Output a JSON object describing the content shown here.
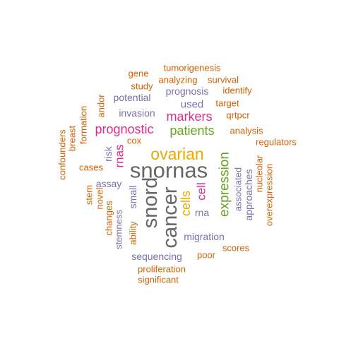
{
  "colors": {
    "orange": "#d95f02",
    "purple": "#7570b3",
    "magenta": "#e7298a",
    "green": "#66a61e",
    "gold": "#e6ab02",
    "gray": "#666666"
  },
  "words": [
    {
      "text": "snornas",
      "color": "#666666"
    },
    {
      "text": "cancer",
      "color": "#666666"
    },
    {
      "text": "snord",
      "color": "#666666"
    },
    {
      "text": "ovarian",
      "color": "#e6ab02"
    },
    {
      "text": "expression",
      "color": "#66a61e"
    },
    {
      "text": "patients",
      "color": "#66a61e"
    },
    {
      "text": "prognostic",
      "color": "#e7298a"
    },
    {
      "text": "markers",
      "color": "#e7298a"
    },
    {
      "text": "cells",
      "color": "#e6ab02"
    },
    {
      "text": "cell",
      "color": "#e7298a"
    },
    {
      "text": "rnas",
      "color": "#e7298a"
    },
    {
      "text": "prognosis",
      "color": "#7570b3"
    },
    {
      "text": "used",
      "color": "#7570b3"
    },
    {
      "text": "potential",
      "color": "#7570b3"
    },
    {
      "text": "invasion",
      "color": "#7570b3"
    },
    {
      "text": "migration",
      "color": "#7570b3"
    },
    {
      "text": "sequencing",
      "color": "#7570b3"
    },
    {
      "text": "approaches",
      "color": "#7570b3"
    },
    {
      "text": "associated",
      "color": "#7570b3"
    },
    {
      "text": "small",
      "color": "#7570b3"
    },
    {
      "text": "assay",
      "color": "#7570b3"
    },
    {
      "text": "risk",
      "color": "#7570b3"
    },
    {
      "text": "rna",
      "color": "#7570b3"
    },
    {
      "text": "stemness",
      "color": "#7570b3"
    },
    {
      "text": "tumorigenesis",
      "color": "#d95f02"
    },
    {
      "text": "gene",
      "color": "#d95f02"
    },
    {
      "text": "analyzing",
      "color": "#d95f02"
    },
    {
      "text": "survival",
      "color": "#d95f02"
    },
    {
      "text": "study",
      "color": "#d95f02"
    },
    {
      "text": "identify",
      "color": "#d95f02"
    },
    {
      "text": "target",
      "color": "#d95f02"
    },
    {
      "text": "qrtpcr",
      "color": "#d95f02"
    },
    {
      "text": "andor",
      "color": "#d95f02"
    },
    {
      "text": "analysis",
      "color": "#d95f02"
    },
    {
      "text": "regulators",
      "color": "#d95f02"
    },
    {
      "text": "cox",
      "color": "#d95f02"
    },
    {
      "text": "breast",
      "color": "#d95f02"
    },
    {
      "text": "formation",
      "color": "#d95f02"
    },
    {
      "text": "confounders",
      "color": "#d95f02"
    },
    {
      "text": "cases",
      "color": "#d95f02"
    },
    {
      "text": "nucleolar",
      "color": "#d95f02"
    },
    {
      "text": "overexpression",
      "color": "#d95f02"
    },
    {
      "text": "stem",
      "color": "#d95f02"
    },
    {
      "text": "novel",
      "color": "#d95f02"
    },
    {
      "text": "changes",
      "color": "#d95f02"
    },
    {
      "text": "ability",
      "color": "#d95f02"
    },
    {
      "text": "scores",
      "color": "#d95f02"
    },
    {
      "text": "poor",
      "color": "#d95f02"
    },
    {
      "text": "proliferation",
      "color": "#d95f02"
    },
    {
      "text": "significant",
      "color": "#d95f02"
    }
  ]
}
